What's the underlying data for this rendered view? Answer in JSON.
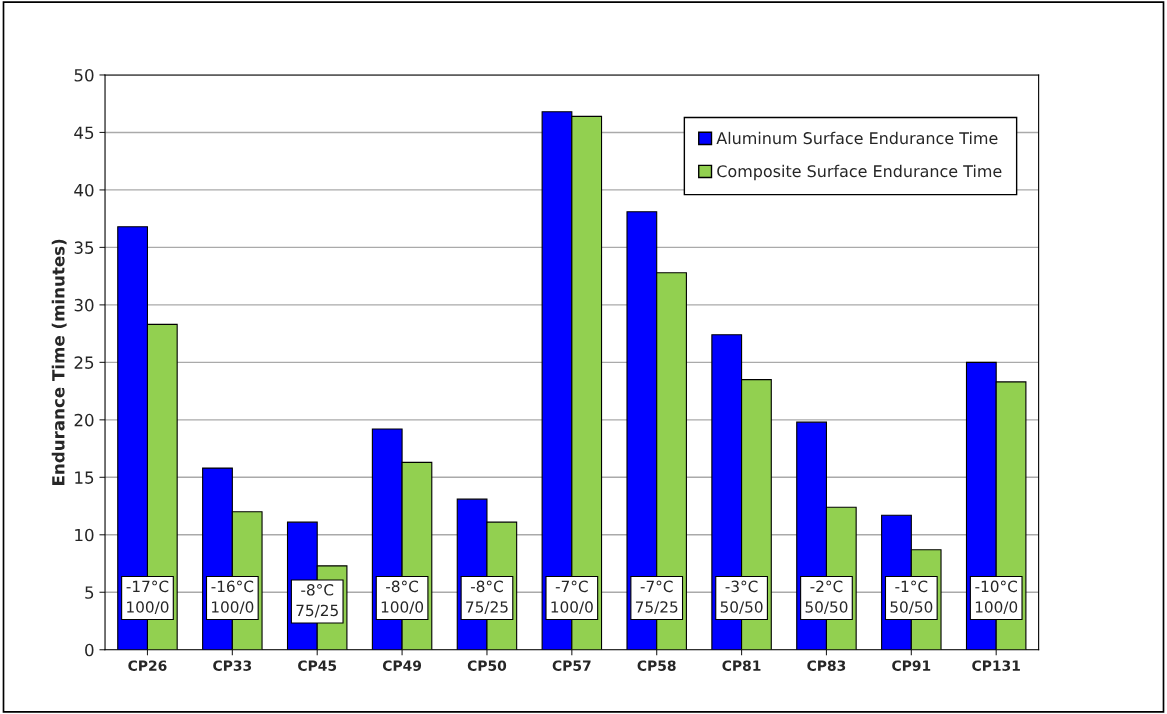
{
  "chart_data": {
    "type": "bar",
    "ylabel": "Endurance Time (minutes)",
    "categories": [
      "CP26",
      "CP33",
      "CP45",
      "CP49",
      "CP50",
      "CP57",
      "CP58",
      "CP81",
      "CP83",
      "CP91",
      "CP131"
    ],
    "series": [
      {
        "name": "Aluminum Surface Endurance Time",
        "color": "#0000ff",
        "values": [
          36.8,
          15.8,
          11.1,
          19.2,
          13.1,
          46.8,
          38.1,
          27.4,
          19.8,
          11.7,
          25.0
        ]
      },
      {
        "name": "Composite Surface Endurance Time",
        "color": "#92d050",
        "values": [
          28.3,
          12.0,
          7.3,
          16.3,
          11.1,
          46.4,
          32.8,
          23.5,
          12.4,
          8.7,
          23.3
        ]
      }
    ],
    "annotations": [
      {
        "text": "-17°C\n100/0",
        "x": "CP26",
        "y": 4.5
      },
      {
        "text": "-16°C\n100/0",
        "x": "CP33",
        "y": 4.5
      },
      {
        "text": "-8°C\n75/25",
        "x": "CP45",
        "y": 4.2
      },
      {
        "text": "-8°C\n100/0",
        "x": "CP49",
        "y": 4.5
      },
      {
        "text": "-8°C\n75/25",
        "x": "CP50",
        "y": 4.5
      },
      {
        "text": "-7°C\n100/0",
        "x": "CP57",
        "y": 4.5
      },
      {
        "text": "-7°C\n75/25",
        "x": "CP58",
        "y": 4.5
      },
      {
        "text": "-3°C\n50/50",
        "x": "CP81",
        "y": 4.5
      },
      {
        "text": "-2°C\n50/50",
        "x": "CP83",
        "y": 4.5
      },
      {
        "text": "-1°C\n50/50",
        "x": "CP91",
        "y": 4.5
      },
      {
        "text": "-10°C\n100/0",
        "x": "CP131",
        "y": 4.5
      }
    ],
    "ylim": [
      0,
      50
    ],
    "yticks": [
      0,
      5,
      10,
      15,
      20,
      25,
      30,
      35,
      40,
      45,
      50
    ],
    "grid": "y",
    "legend": "top right"
  }
}
